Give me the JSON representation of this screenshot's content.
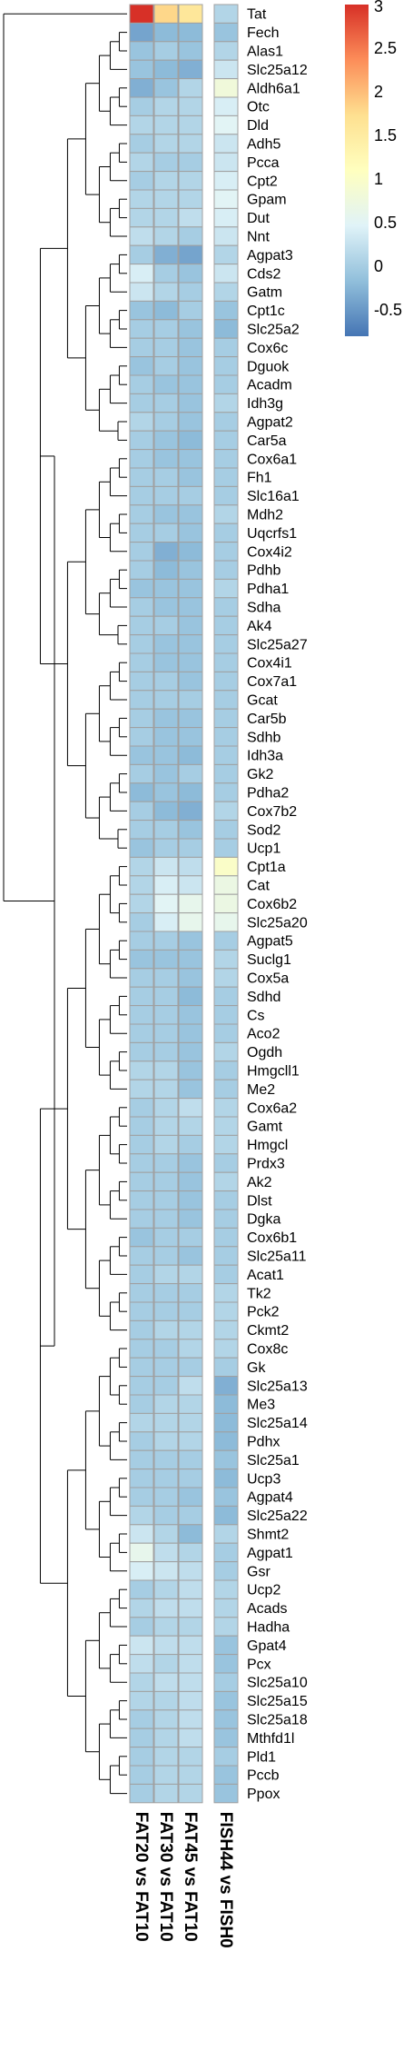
{
  "chart_data": {
    "type": "heatmap",
    "title": "",
    "columns": [
      "FAT20 vs FAT10",
      "FAT30 vs FAT10",
      "FAT45 vs FAT10",
      "FISH44 vs FISH0"
    ],
    "rows": [
      "Tat",
      "Fech",
      "Alas1",
      "Slc25a12",
      "Aldh6a1",
      "Otc",
      "Dld",
      "Adh5",
      "Pcca",
      "Cpt2",
      "Gpam",
      "Dut",
      "Nnt",
      "Agpat3",
      "Cds2",
      "Gatm",
      "Cpt1c",
      "Slc25a2",
      "Cox6c",
      "Dguok",
      "Acadm",
      "Idh3g",
      "Agpat2",
      "Car5a",
      "Cox6a1",
      "Fh1",
      "Slc16a1",
      "Mdh2",
      "Uqcrfs1",
      "Cox4i2",
      "Pdhb",
      "Pdha1",
      "Sdha",
      "Ak4",
      "Slc25a27",
      "Cox4i1",
      "Cox7a1",
      "Gcat",
      "Car5b",
      "Sdhb",
      "Idh3a",
      "Gk2",
      "Pdha2",
      "Cox7b2",
      "Sod2",
      "Ucp1",
      "Cpt1a",
      "Cat",
      "Cox6b2",
      "Slc25a20",
      "Agpat5",
      "Suclg1",
      "Cox5a",
      "Sdhd",
      "Cs",
      "Aco2",
      "Ogdh",
      "Hmgcll1",
      "Me2",
      "Cox6a2",
      "Gamt",
      "Hmgcl",
      "Prdx3",
      "Ak2",
      "Dlst",
      "Dgka",
      "Cox6b1",
      "Slc25a11",
      "Acat1",
      "Tk2",
      "Pck2",
      "Ckmt2",
      "Cox8c",
      "Gk",
      "Slc25a13",
      "Me3",
      "Slc25a14",
      "Pdhx",
      "Slc25a1",
      "Ucp3",
      "Agpat4",
      "Slc25a22",
      "Shmt2",
      "Agpat1",
      "Gsr",
      "Ucp2",
      "Acads",
      "Hadha",
      "Gpat4",
      "Pcx",
      "Slc25a10",
      "Slc25a15",
      "Slc25a18",
      "Mthfd1l",
      "Pld1",
      "Pccb",
      "Ppox"
    ],
    "values": [
      [
        3.0,
        1.8,
        1.6,
        0.1
      ],
      [
        -0.4,
        -0.2,
        -0.2,
        -0.1
      ],
      [
        -0.1,
        0.0,
        -0.1,
        0.1
      ],
      [
        -0.1,
        -0.2,
        -0.3,
        0.3
      ],
      [
        -0.3,
        -0.1,
        0.1,
        0.8
      ],
      [
        0.0,
        0.1,
        0.1,
        0.4
      ],
      [
        0.1,
        0.1,
        0.1,
        0.5
      ],
      [
        0.0,
        0.1,
        0.1,
        0.3
      ],
      [
        0.1,
        0.0,
        0.0,
        0.3
      ],
      [
        0.0,
        0.1,
        0.1,
        0.4
      ],
      [
        0.1,
        0.1,
        0.1,
        0.5
      ],
      [
        0.1,
        0.1,
        0.2,
        0.4
      ],
      [
        0.2,
        0.1,
        0.0,
        0.3
      ],
      [
        0.0,
        -0.3,
        -0.4,
        0.1
      ],
      [
        0.4,
        0.0,
        -0.1,
        0.3
      ],
      [
        0.3,
        0.1,
        0.0,
        0.1
      ],
      [
        -0.1,
        -0.2,
        0.0,
        -0.1
      ],
      [
        0.0,
        0.0,
        -0.1,
        -0.2
      ],
      [
        0.0,
        0.0,
        -0.1,
        0.0
      ],
      [
        -0.1,
        0.0,
        -0.1,
        0.0
      ],
      [
        0.0,
        -0.1,
        -0.1,
        0.0
      ],
      [
        0.0,
        0.0,
        -0.1,
        0.1
      ],
      [
        0.1,
        0.0,
        -0.1,
        0.0
      ],
      [
        0.0,
        -0.1,
        -0.2,
        0.0
      ],
      [
        0.0,
        -0.1,
        -0.1,
        0.0
      ],
      [
        0.0,
        0.0,
        -0.1,
        0.0
      ],
      [
        0.0,
        0.0,
        0.0,
        0.0
      ],
      [
        0.0,
        -0.1,
        -0.1,
        0.1
      ],
      [
        0.0,
        0.0,
        -0.1,
        0.0
      ],
      [
        0.0,
        -0.3,
        -0.2,
        0.0
      ],
      [
        0.0,
        -0.2,
        -0.1,
        0.0
      ],
      [
        -0.1,
        -0.1,
        -0.1,
        0.1
      ],
      [
        0.0,
        -0.1,
        -0.1,
        0.0
      ],
      [
        0.0,
        0.0,
        -0.1,
        0.0
      ],
      [
        0.0,
        -0.1,
        -0.1,
        0.0
      ],
      [
        0.0,
        -0.1,
        -0.1,
        0.0
      ],
      [
        0.0,
        0.0,
        -0.1,
        0.0
      ],
      [
        0.0,
        0.0,
        0.0,
        0.0
      ],
      [
        0.0,
        -0.1,
        -0.1,
        0.0
      ],
      [
        0.0,
        -0.1,
        -0.1,
        0.0
      ],
      [
        -0.1,
        -0.1,
        -0.2,
        0.0
      ],
      [
        0.0,
        -0.1,
        0.0,
        0.0
      ],
      [
        -0.2,
        -0.1,
        -0.2,
        0.0
      ],
      [
        0.0,
        -0.2,
        -0.3,
        0.1
      ],
      [
        0.0,
        0.0,
        -0.1,
        0.0
      ],
      [
        -0.1,
        0.0,
        0.0,
        0.0
      ],
      [
        0.1,
        0.3,
        0.2,
        1.0
      ],
      [
        0.1,
        0.4,
        0.3,
        0.7
      ],
      [
        0.1,
        0.5,
        0.6,
        0.7
      ],
      [
        0.0,
        0.4,
        0.6,
        0.6
      ],
      [
        0.0,
        0.0,
        -0.1,
        0.0
      ],
      [
        -0.1,
        -0.1,
        -0.1,
        0.1
      ],
      [
        0.0,
        0.0,
        -0.1,
        0.1
      ],
      [
        0.0,
        0.0,
        -0.2,
        0.0
      ],
      [
        0.0,
        0.0,
        -0.1,
        0.0
      ],
      [
        0.0,
        0.0,
        -0.1,
        0.0
      ],
      [
        0.0,
        0.0,
        -0.1,
        0.1
      ],
      [
        0.1,
        0.1,
        -0.1,
        0.0
      ],
      [
        0.1,
        0.1,
        -0.1,
        0.0
      ],
      [
        0.0,
        0.1,
        0.2,
        0.1
      ],
      [
        0.0,
        0.1,
        0.1,
        0.1
      ],
      [
        0.0,
        0.1,
        0.0,
        0.1
      ],
      [
        0.0,
        0.0,
        -0.1,
        0.0
      ],
      [
        0.0,
        0.0,
        -0.1,
        0.1
      ],
      [
        0.0,
        0.0,
        -0.1,
        0.0
      ],
      [
        0.0,
        0.0,
        -0.1,
        0.0
      ],
      [
        -0.1,
        0.0,
        0.0,
        0.0
      ],
      [
        0.0,
        0.0,
        -0.1,
        0.0
      ],
      [
        0.0,
        0.1,
        0.1,
        0.0
      ],
      [
        0.0,
        0.0,
        0.0,
        0.1
      ],
      [
        0.0,
        0.0,
        0.0,
        0.1
      ],
      [
        0.0,
        0.1,
        0.1,
        0.1
      ],
      [
        0.0,
        0.0,
        0.1,
        0.1
      ],
      [
        0.0,
        0.0,
        0.0,
        0.0
      ],
      [
        0.0,
        0.0,
        0.2,
        -0.3
      ],
      [
        0.0,
        0.1,
        0.1,
        -0.2
      ],
      [
        0.1,
        0.1,
        0.1,
        -0.2
      ],
      [
        0.0,
        0.1,
        0.1,
        -0.2
      ],
      [
        0.0,
        0.0,
        0.0,
        -0.1
      ],
      [
        0.0,
        0.0,
        0.0,
        -0.2
      ],
      [
        0.0,
        0.0,
        -0.1,
        -0.1
      ],
      [
        0.1,
        0.0,
        0.0,
        -0.2
      ],
      [
        0.3,
        0.1,
        -0.2,
        0.1
      ],
      [
        0.6,
        0.2,
        0.1,
        0.0
      ],
      [
        0.4,
        0.3,
        0.2,
        0.0
      ],
      [
        0.0,
        0.1,
        0.2,
        0.1
      ],
      [
        0.1,
        0.2,
        0.2,
        0.1
      ],
      [
        0.0,
        0.1,
        0.1,
        0.1
      ],
      [
        0.3,
        0.2,
        0.2,
        -0.1
      ],
      [
        0.2,
        0.1,
        0.2,
        -0.1
      ],
      [
        0.1,
        0.2,
        0.2,
        0.0
      ],
      [
        0.1,
        0.1,
        0.2,
        -0.1
      ],
      [
        0.0,
        0.1,
        0.2,
        -0.1
      ],
      [
        0.0,
        0.1,
        0.2,
        -0.1
      ],
      [
        0.0,
        0.1,
        0.1,
        0.0
      ],
      [
        0.0,
        0.1,
        0.1,
        -0.1
      ],
      [
        0.0,
        0.1,
        0.1,
        -0.1
      ]
    ],
    "color_scale": {
      "min": -0.8,
      "max": 3.0,
      "stops": [
        "#4575b4",
        "#91bfdb",
        "#e0f3f8",
        "#ffffbf",
        "#fee090",
        "#fc8d59",
        "#d73027"
      ],
      "ticks": [
        3,
        2.5,
        2,
        1.5,
        1,
        0.5,
        0,
        -0.5
      ]
    },
    "row_dendrogram": true,
    "legend_placement": "top-right"
  }
}
